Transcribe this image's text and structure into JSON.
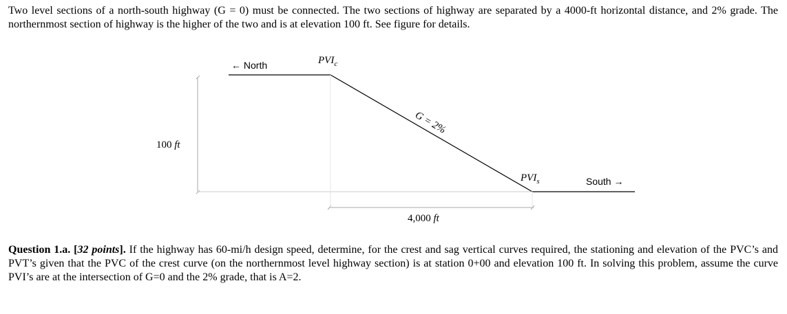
{
  "intro": {
    "text": "Two level sections of a north-south highway (G = 0) must be connected. The two sections of highway are separated by a 4000-ft horizontal distance, and 2% grade. The northernmost section of highway is the higher of the two and is at elevation 100 ft. See figure for details."
  },
  "figure": {
    "north_label": "← North",
    "south_label": "South →",
    "pvic_label": "PVI",
    "pvic_sub": "c",
    "pvis_label": "PVI",
    "pvis_sub": "s",
    "grade_label": "G = 2%",
    "vertical_dim_value": "100",
    "vertical_dim_unit": "ft",
    "horizontal_dim_value": "4,000",
    "horizontal_dim_unit": "ft"
  },
  "question": {
    "label": "Question 1.a.",
    "points_open": "[",
    "points": "32 points",
    "points_close": "].",
    "text": " If the highway has 60-mi/h design speed, determine, for the crest and sag vertical curves required, the stationing and elevation of the PVC’s and PVT’s given that the PVC of the crest curve (on the northernmost level highway section) is at station 0+00 and elevation 100 ft. In solving this problem, assume the curve PVI’s are at the intersection of G=0 and the 2% grade, that is A=2."
  }
}
